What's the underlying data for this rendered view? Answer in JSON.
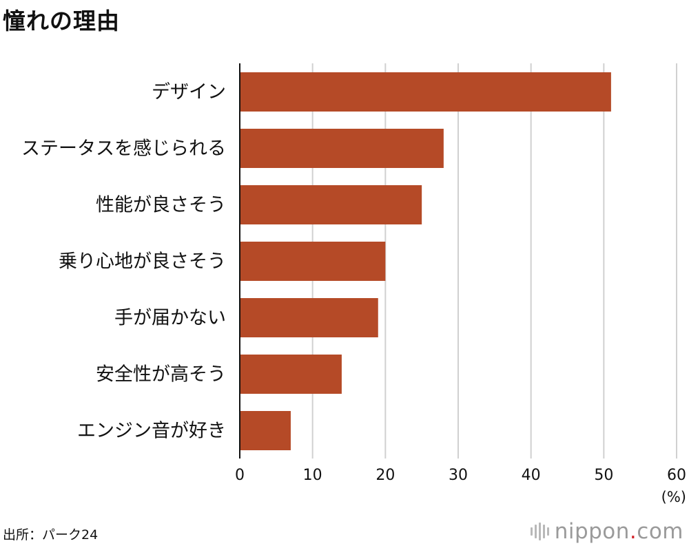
{
  "title": "憧れの理由",
  "source": "出所：パーク24",
  "logo": {
    "left": "nippon",
    "dot": ".",
    "right": "com"
  },
  "colors": {
    "bar": "#b54a27",
    "grid": "#d0d0d0",
    "axis": "#111111"
  },
  "chart_data": {
    "type": "bar",
    "orientation": "horizontal",
    "categories": [
      "デザイン",
      "ステータスを感じられる",
      "性能が良さそう",
      "乗り心地が良さそう",
      "手が届かない",
      "安全性が高そう",
      "エンジン音が好き"
    ],
    "values": [
      51,
      28,
      25,
      20,
      19,
      14,
      7
    ],
    "xlim": [
      0,
      60
    ],
    "ticks": [
      0,
      10,
      20,
      30,
      40,
      50,
      60
    ],
    "unit": "(%)",
    "grid": true
  }
}
